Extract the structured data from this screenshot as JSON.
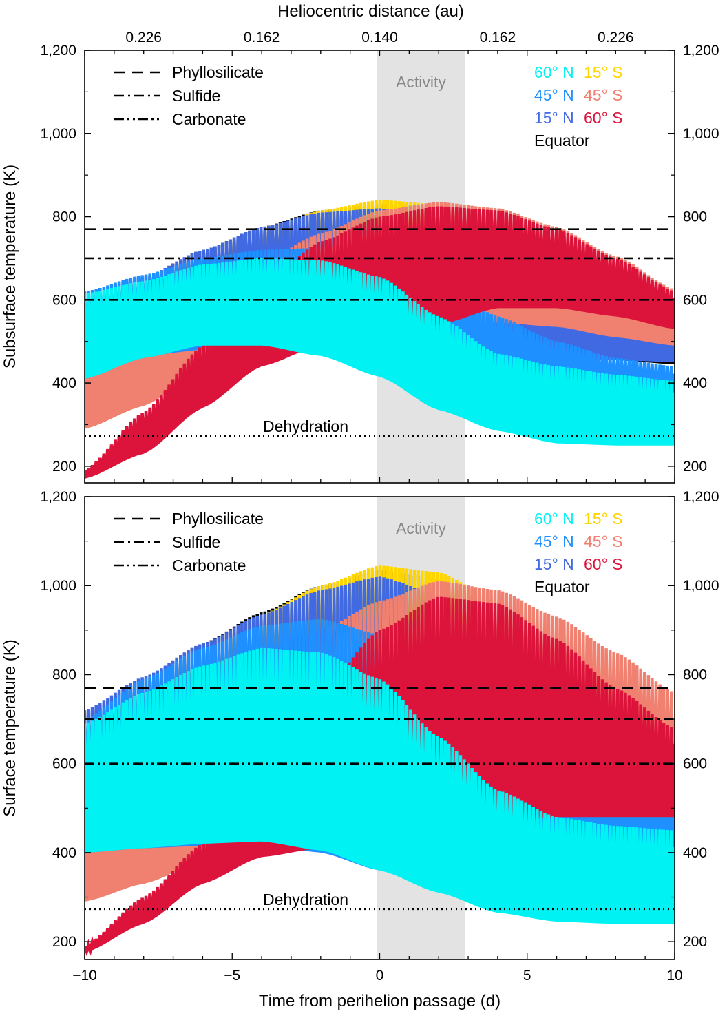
{
  "colors": {
    "lat60N": "#00f2f2",
    "lat45N": "#1e90ff",
    "lat15N": "#4169e1",
    "equator": "#000000",
    "lat15S": "#ffd500",
    "lat45S": "#f08070",
    "lat60S": "#dc143c",
    "activity_band": "#e3e3e3"
  },
  "chart_data": [
    {
      "type": "area",
      "panel": "top",
      "title": "",
      "xlabel": "",
      "ylabel": "Subsurface temperature (K)",
      "top_xlabel": "Heliocentric distance (au)",
      "top_ticks": [
        {
          "x": -8,
          "label": "0.226"
        },
        {
          "x": -4,
          "label": "0.162"
        },
        {
          "x": 0,
          "label": "0.140"
        },
        {
          "x": 4,
          "label": "0.162"
        },
        {
          "x": 8,
          "label": "0.226"
        }
      ],
      "xlim": [
        -10,
        10
      ],
      "ylim": [
        160,
        1200
      ],
      "y_ticks": [
        {
          "v": 200,
          "label": "200"
        },
        {
          "v": 400,
          "label": "400"
        },
        {
          "v": 600,
          "label": "600"
        },
        {
          "v": 800,
          "label": "800"
        },
        {
          "v": 1000,
          "label": "1,000"
        },
        {
          "v": 1200,
          "label": "1,200"
        }
      ],
      "x_ticks": [],
      "activity": {
        "x0": -0.1,
        "x1": 2.9,
        "label": "Activity"
      },
      "thresholds": [
        {
          "name": "Phyllosilicate",
          "value": 770,
          "style": "dashed"
        },
        {
          "name": "Sulfide",
          "value": 700,
          "style": "dashdot"
        },
        {
          "name": "Carbonate",
          "value": 600,
          "style": "dashdotdot"
        },
        {
          "name": "Dehydration",
          "value": 273,
          "style": "dotted"
        }
      ],
      "legend": {
        "lines": [
          "Phyllosilicate",
          "Sulfide",
          "Carbonate"
        ],
        "latitudes": [
          [
            "60° N",
            "15° S"
          ],
          [
            "45° N",
            "45° S"
          ],
          [
            "15° N",
            "60° S"
          ],
          [
            "Equator"
          ]
        ]
      },
      "dehydration_label": "Dehydration",
      "x_samples": [
        -10,
        -8,
        -6,
        -4,
        -2,
        0,
        2,
        4,
        6,
        8,
        10
      ],
      "series": [
        {
          "name": "Equator",
          "color_key": "equator",
          "max": [
            600,
            655,
            720,
            775,
            815,
            830,
            825,
            790,
            740,
            680,
            610
          ],
          "min": [
            395,
            440,
            470,
            490,
            500,
            500,
            490,
            480,
            465,
            455,
            445
          ]
        },
        {
          "name": "15° S",
          "color_key": "lat15S",
          "max": [
            590,
            645,
            710,
            765,
            815,
            840,
            830,
            800,
            750,
            690,
            615
          ],
          "min": [
            385,
            430,
            465,
            485,
            500,
            500,
            500,
            495,
            480,
            470,
            460
          ]
        },
        {
          "name": "15° N",
          "color_key": "lat15N",
          "max": [
            605,
            655,
            720,
            775,
            810,
            820,
            790,
            740,
            690,
            640,
            590
          ],
          "min": [
            420,
            465,
            480,
            490,
            495,
            490,
            470,
            465,
            460,
            455,
            450
          ]
        },
        {
          "name": "45° S",
          "color_key": "lat45S",
          "max": [
            490,
            550,
            620,
            690,
            760,
            815,
            835,
            820,
            775,
            705,
            625
          ],
          "min": [
            290,
            345,
            430,
            480,
            500,
            510,
            530,
            545,
            535,
            510,
            490
          ]
        },
        {
          "name": "45° N",
          "color_key": "lat45N",
          "max": [
            620,
            660,
            700,
            720,
            725,
            710,
            640,
            560,
            500,
            460,
            440
          ],
          "min": [
            420,
            465,
            480,
            480,
            470,
            445,
            405,
            385,
            370,
            355,
            340
          ]
        },
        {
          "name": "60° S",
          "color_key": "lat60S",
          "max": [
            190,
            330,
            490,
            635,
            740,
            800,
            825,
            815,
            770,
            700,
            620
          ],
          "min": [
            170,
            230,
            340,
            440,
            490,
            500,
            540,
            580,
            580,
            560,
            530
          ]
        },
        {
          "name": "60° N",
          "color_key": "lat60N",
          "max": [
            615,
            645,
            685,
            700,
            695,
            655,
            560,
            470,
            440,
            420,
            405
          ],
          "min": [
            410,
            460,
            490,
            490,
            465,
            415,
            335,
            285,
            255,
            250,
            250
          ]
        }
      ]
    },
    {
      "type": "area",
      "panel": "bottom",
      "title": "",
      "xlabel": "Time from perihelion passage (d)",
      "ylabel": "Surface temperature (K)",
      "xlim": [
        -10,
        10
      ],
      "ylim": [
        160,
        1200
      ],
      "y_ticks": [
        {
          "v": 200,
          "label": "200"
        },
        {
          "v": 400,
          "label": "400"
        },
        {
          "v": 600,
          "label": "600"
        },
        {
          "v": 800,
          "label": "800"
        },
        {
          "v": 1000,
          "label": "1,000"
        },
        {
          "v": 1200,
          "label": "1,200"
        }
      ],
      "x_ticks": [
        {
          "v": -10,
          "label": "−10"
        },
        {
          "v": -5,
          "label": "−5"
        },
        {
          "v": 0,
          "label": "0"
        },
        {
          "v": 5,
          "label": "5"
        },
        {
          "v": 10,
          "label": "10"
        }
      ],
      "activity": {
        "x0": -0.1,
        "x1": 2.9,
        "label": "Activity"
      },
      "thresholds": [
        {
          "name": "Phyllosilicate",
          "value": 770,
          "style": "dashed"
        },
        {
          "name": "Sulfide",
          "value": 700,
          "style": "dashdot"
        },
        {
          "name": "Carbonate",
          "value": 600,
          "style": "dashdotdot"
        },
        {
          "name": "Dehydration",
          "value": 273,
          "style": "dotted"
        }
      ],
      "legend": {
        "lines": [
          "Phyllosilicate",
          "Sulfide",
          "Carbonate"
        ],
        "latitudes": [
          [
            "60° N",
            "15° S"
          ],
          [
            "45° N",
            "45° S"
          ],
          [
            "15° N",
            "60° S"
          ],
          [
            "Equator"
          ]
        ]
      },
      "dehydration_label": "Dehydration",
      "x_samples": [
        -10,
        -8,
        -6,
        -4,
        -2,
        0,
        2,
        4,
        6,
        8,
        10
      ],
      "series": [
        {
          "name": "Equator",
          "color_key": "equator",
          "max": [
            710,
            790,
            870,
            940,
            1000,
            1035,
            1015,
            950,
            880,
            800,
            720
          ],
          "min": [
            400,
            410,
            415,
            418,
            418,
            415,
            410,
            400,
            390,
            380,
            370
          ]
        },
        {
          "name": "15° S",
          "color_key": "lat15S",
          "max": [
            700,
            780,
            860,
            935,
            1000,
            1045,
            1030,
            965,
            890,
            810,
            730
          ],
          "min": [
            400,
            410,
            415,
            418,
            420,
            420,
            418,
            410,
            400,
            390,
            380
          ]
        },
        {
          "name": "15° N",
          "color_key": "lat15N",
          "max": [
            720,
            795,
            870,
            935,
            990,
            1020,
            980,
            900,
            820,
            740,
            670
          ],
          "min": [
            405,
            415,
            418,
            420,
            415,
            405,
            380,
            350,
            335,
            325,
            320
          ]
        },
        {
          "name": "45° S",
          "color_key": "lat45S",
          "max": [
            560,
            640,
            730,
            820,
            900,
            965,
            1010,
            990,
            930,
            850,
            760
          ],
          "min": [
            290,
            330,
            380,
            400,
            410,
            420,
            440,
            460,
            460,
            450,
            440
          ]
        },
        {
          "name": "45° N",
          "color_key": "lat45N",
          "max": [
            700,
            790,
            860,
            910,
            925,
            890,
            800,
            680,
            600,
            550,
            520
          ],
          "min": [
            400,
            410,
            415,
            418,
            400,
            360,
            320,
            310,
            305,
            300,
            300
          ]
        },
        {
          "name": "60° S",
          "color_key": "lat60S",
          "max": [
            190,
            300,
            420,
            580,
            760,
            900,
            975,
            960,
            880,
            770,
            680
          ],
          "min": [
            175,
            240,
            330,
            390,
            410,
            420,
            440,
            470,
            480,
            480,
            480
          ]
        },
        {
          "name": "60° N",
          "color_key": "lat60N",
          "max": [
            690,
            760,
            820,
            860,
            850,
            790,
            660,
            540,
            480,
            460,
            450
          ],
          "min": [
            400,
            410,
            420,
            425,
            405,
            360,
            310,
            265,
            245,
            240,
            240
          ]
        }
      ]
    }
  ]
}
